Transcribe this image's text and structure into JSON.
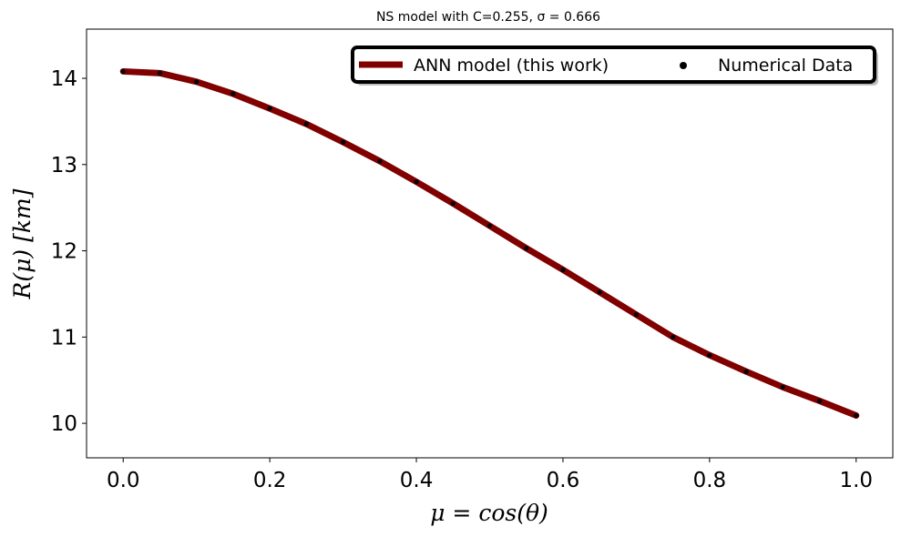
{
  "chart_data": {
    "type": "line",
    "title": "NS model with C=0.255, σ = 0.666",
    "xlabel": "μ = cos(θ)",
    "ylabel": "R(μ) [km]",
    "xlim": [
      -0.05,
      1.05
    ],
    "ylim": [
      9.6,
      14.57
    ],
    "xticks": [
      0.0,
      0.2,
      0.4,
      0.6,
      0.8,
      1.0
    ],
    "xtick_labels": [
      "0.0",
      "0.2",
      "0.4",
      "0.6",
      "0.8",
      "1.0"
    ],
    "yticks": [
      10,
      11,
      12,
      13,
      14
    ],
    "ytick_labels": [
      "10",
      "11",
      "12",
      "13",
      "14"
    ],
    "grid": false,
    "legend_placement": "top-right",
    "series": [
      {
        "name": "ANN model (this work)",
        "kind": "line",
        "color": "#800000",
        "x": [
          0.0,
          0.05,
          0.1,
          0.15,
          0.2,
          0.25,
          0.3,
          0.35,
          0.4,
          0.45,
          0.5,
          0.55,
          0.6,
          0.65,
          0.7,
          0.75,
          0.8,
          0.85,
          0.9,
          0.95,
          1.0
        ],
        "y": [
          14.08,
          14.06,
          13.96,
          13.82,
          13.65,
          13.47,
          13.26,
          13.04,
          12.8,
          12.55,
          12.29,
          12.03,
          11.78,
          11.52,
          11.26,
          11.0,
          10.79,
          10.6,
          10.42,
          10.26,
          10.09
        ]
      },
      {
        "name": "Numerical Data",
        "kind": "scatter",
        "color": "#000000",
        "x": [
          0.0,
          0.05,
          0.1,
          0.15,
          0.2,
          0.25,
          0.3,
          0.35,
          0.4,
          0.45,
          0.5,
          0.55,
          0.6,
          0.65,
          0.7,
          0.75,
          0.8,
          0.85,
          0.9,
          0.95,
          1.0
        ],
        "y": [
          14.08,
          14.06,
          13.96,
          13.82,
          13.65,
          13.47,
          13.26,
          13.04,
          12.8,
          12.55,
          12.29,
          12.03,
          11.78,
          11.52,
          11.26,
          11.0,
          10.79,
          10.6,
          10.42,
          10.26,
          10.09
        ]
      }
    ]
  }
}
